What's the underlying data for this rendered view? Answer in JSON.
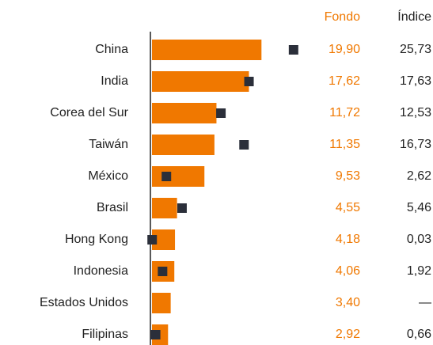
{
  "chart_data": {
    "type": "bar",
    "categories": [
      "China",
      "India",
      "Corea del Sur",
      "Taiwán",
      "México",
      "Brasil",
      "Hong Kong",
      "Indonesia",
      "Estados Unidos",
      "Filipinas"
    ],
    "series": [
      {
        "name": "Fondo",
        "color": "#f07800",
        "values": [
          19.9,
          17.62,
          11.72,
          11.35,
          9.53,
          4.55,
          4.18,
          4.06,
          3.4,
          2.92
        ],
        "value_labels": [
          "19,90",
          "17,62",
          "11,72",
          "11,35",
          "9,53",
          "4,55",
          "4,18",
          "4,06",
          "3,40",
          "2,92"
        ]
      },
      {
        "name": "Índice",
        "color": "#2b2f3a",
        "values": [
          25.73,
          17.63,
          12.53,
          16.73,
          2.62,
          5.46,
          0.03,
          1.92,
          null,
          0.66
        ],
        "value_labels": [
          "25,73",
          "17,63",
          "12,53",
          "16,73",
          "2,62",
          "5,46",
          "0,03",
          "1,92",
          "—",
          "0,66"
        ]
      }
    ],
    "xlim": [
      0,
      20
    ]
  }
}
